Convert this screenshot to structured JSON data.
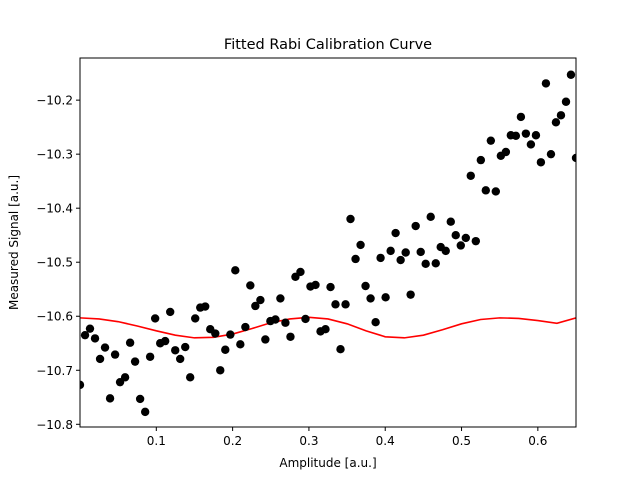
{
  "chart_data": {
    "type": "scatter",
    "title": "Fitted Rabi Calibration Curve",
    "xlabel": "Amplitude [a.u.]",
    "ylabel": "Measured Signal [a.u.]",
    "xlim": [
      0.0,
      0.65
    ],
    "ylim": [
      -10.805,
      -10.122
    ],
    "xticks": [
      0.1,
      0.2,
      0.3,
      0.4,
      0.5,
      0.6
    ],
    "xtick_labels": [
      "0.1",
      "0.2",
      "0.3",
      "0.4",
      "0.5",
      "0.6"
    ],
    "yticks": [
      -10.8,
      -10.7,
      -10.6,
      -10.5,
      -10.4,
      -10.3,
      -10.2
    ],
    "ytick_labels": [
      "−10.8",
      "−10.7",
      "−10.6",
      "−10.5",
      "−10.4",
      "−10.3",
      "−10.2"
    ],
    "grid": false,
    "legend": "none",
    "series": [
      {
        "kind": "scatter",
        "color": "#000000",
        "points": [
          [
            0.0,
            -10.727
          ],
          [
            0.0066,
            -10.635
          ],
          [
            0.0131,
            -10.623
          ],
          [
            0.0197,
            -10.641
          ],
          [
            0.0263,
            -10.679
          ],
          [
            0.0328,
            -10.658
          ],
          [
            0.0394,
            -10.752
          ],
          [
            0.046,
            -10.671
          ],
          [
            0.0525,
            -10.722
          ],
          [
            0.0591,
            -10.713
          ],
          [
            0.0657,
            -10.649
          ],
          [
            0.0722,
            -10.684
          ],
          [
            0.0788,
            -10.753
          ],
          [
            0.0854,
            -10.777
          ],
          [
            0.0919,
            -10.675
          ],
          [
            0.0985,
            -10.604
          ],
          [
            0.1051,
            -10.65
          ],
          [
            0.1116,
            -10.646
          ],
          [
            0.1182,
            -10.592
          ],
          [
            0.1248,
            -10.663
          ],
          [
            0.1313,
            -10.679
          ],
          [
            0.1379,
            -10.657
          ],
          [
            0.1444,
            -10.713
          ],
          [
            0.151,
            -10.604
          ],
          [
            0.1576,
            -10.584
          ],
          [
            0.1641,
            -10.582
          ],
          [
            0.1707,
            -10.624
          ],
          [
            0.1773,
            -10.632
          ],
          [
            0.1838,
            -10.7
          ],
          [
            0.1904,
            -10.662
          ],
          [
            0.197,
            -10.634
          ],
          [
            0.2035,
            -10.515
          ],
          [
            0.2101,
            -10.652
          ],
          [
            0.2167,
            -10.62
          ],
          [
            0.2232,
            -10.543
          ],
          [
            0.2298,
            -10.581
          ],
          [
            0.2364,
            -10.57
          ],
          [
            0.2429,
            -10.643
          ],
          [
            0.2495,
            -10.609
          ],
          [
            0.2561,
            -10.606
          ],
          [
            0.2626,
            -10.567
          ],
          [
            0.2692,
            -10.612
          ],
          [
            0.2758,
            -10.638
          ],
          [
            0.2823,
            -10.527
          ],
          [
            0.2889,
            -10.518
          ],
          [
            0.2955,
            -10.605
          ],
          [
            0.302,
            -10.545
          ],
          [
            0.3086,
            -10.542
          ],
          [
            0.3152,
            -10.628
          ],
          [
            0.3217,
            -10.624
          ],
          [
            0.3283,
            -10.546
          ],
          [
            0.3348,
            -10.578
          ],
          [
            0.3414,
            -10.661
          ],
          [
            0.348,
            -10.578
          ],
          [
            0.3545,
            -10.42
          ],
          [
            0.3611,
            -10.494
          ],
          [
            0.3677,
            -10.468
          ],
          [
            0.3742,
            -10.544
          ],
          [
            0.3808,
            -10.567
          ],
          [
            0.3874,
            -10.611
          ],
          [
            0.3939,
            -10.492
          ],
          [
            0.4005,
            -10.565
          ],
          [
            0.4071,
            -10.479
          ],
          [
            0.4136,
            -10.446
          ],
          [
            0.4202,
            -10.496
          ],
          [
            0.4268,
            -10.482
          ],
          [
            0.4333,
            -10.56
          ],
          [
            0.4399,
            -10.433
          ],
          [
            0.4465,
            -10.481
          ],
          [
            0.453,
            -10.503
          ],
          [
            0.4596,
            -10.416
          ],
          [
            0.4662,
            -10.502
          ],
          [
            0.4727,
            -10.472
          ],
          [
            0.4793,
            -10.479
          ],
          [
            0.4859,
            -10.425
          ],
          [
            0.4924,
            -10.45
          ],
          [
            0.499,
            -10.469
          ],
          [
            0.5056,
            -10.455
          ],
          [
            0.5121,
            -10.34
          ],
          [
            0.5187,
            -10.461
          ],
          [
            0.5253,
            -10.311
          ],
          [
            0.5318,
            -10.367
          ],
          [
            0.5384,
            -10.275
          ],
          [
            0.5449,
            -10.369
          ],
          [
            0.5515,
            -10.303
          ],
          [
            0.5581,
            -10.296
          ],
          [
            0.5646,
            -10.265
          ],
          [
            0.5712,
            -10.266
          ],
          [
            0.5778,
            -10.231
          ],
          [
            0.5843,
            -10.262
          ],
          [
            0.5909,
            -10.282
          ],
          [
            0.5975,
            -10.265
          ],
          [
            0.604,
            -10.315
          ],
          [
            0.6106,
            -10.169
          ],
          [
            0.6172,
            -10.3
          ],
          [
            0.6237,
            -10.241
          ],
          [
            0.6303,
            -10.228
          ],
          [
            0.6369,
            -10.203
          ],
          [
            0.6434,
            -10.153
          ],
          [
            0.65,
            -10.307
          ]
        ]
      },
      {
        "kind": "line",
        "color": "#ff0000",
        "description": "fitted sinusoid",
        "x": [
          0.0,
          0.025,
          0.05,
          0.075,
          0.1,
          0.125,
          0.15,
          0.175,
          0.2,
          0.225,
          0.25,
          0.275,
          0.3,
          0.325,
          0.35,
          0.375,
          0.4,
          0.425,
          0.45,
          0.475,
          0.5,
          0.525,
          0.55,
          0.575,
          0.6,
          0.625,
          0.65
        ],
        "y": [
          -10.603,
          -10.605,
          -10.61,
          -10.618,
          -10.627,
          -10.635,
          -10.64,
          -10.639,
          -10.633,
          -10.623,
          -10.612,
          -10.605,
          -10.602,
          -10.605,
          -10.614,
          -10.627,
          -10.638,
          -10.64,
          -10.635,
          -10.625,
          -10.614,
          -10.606,
          -10.603,
          -10.604,
          -10.608,
          -10.613,
          -10.603
        ]
      }
    ]
  }
}
